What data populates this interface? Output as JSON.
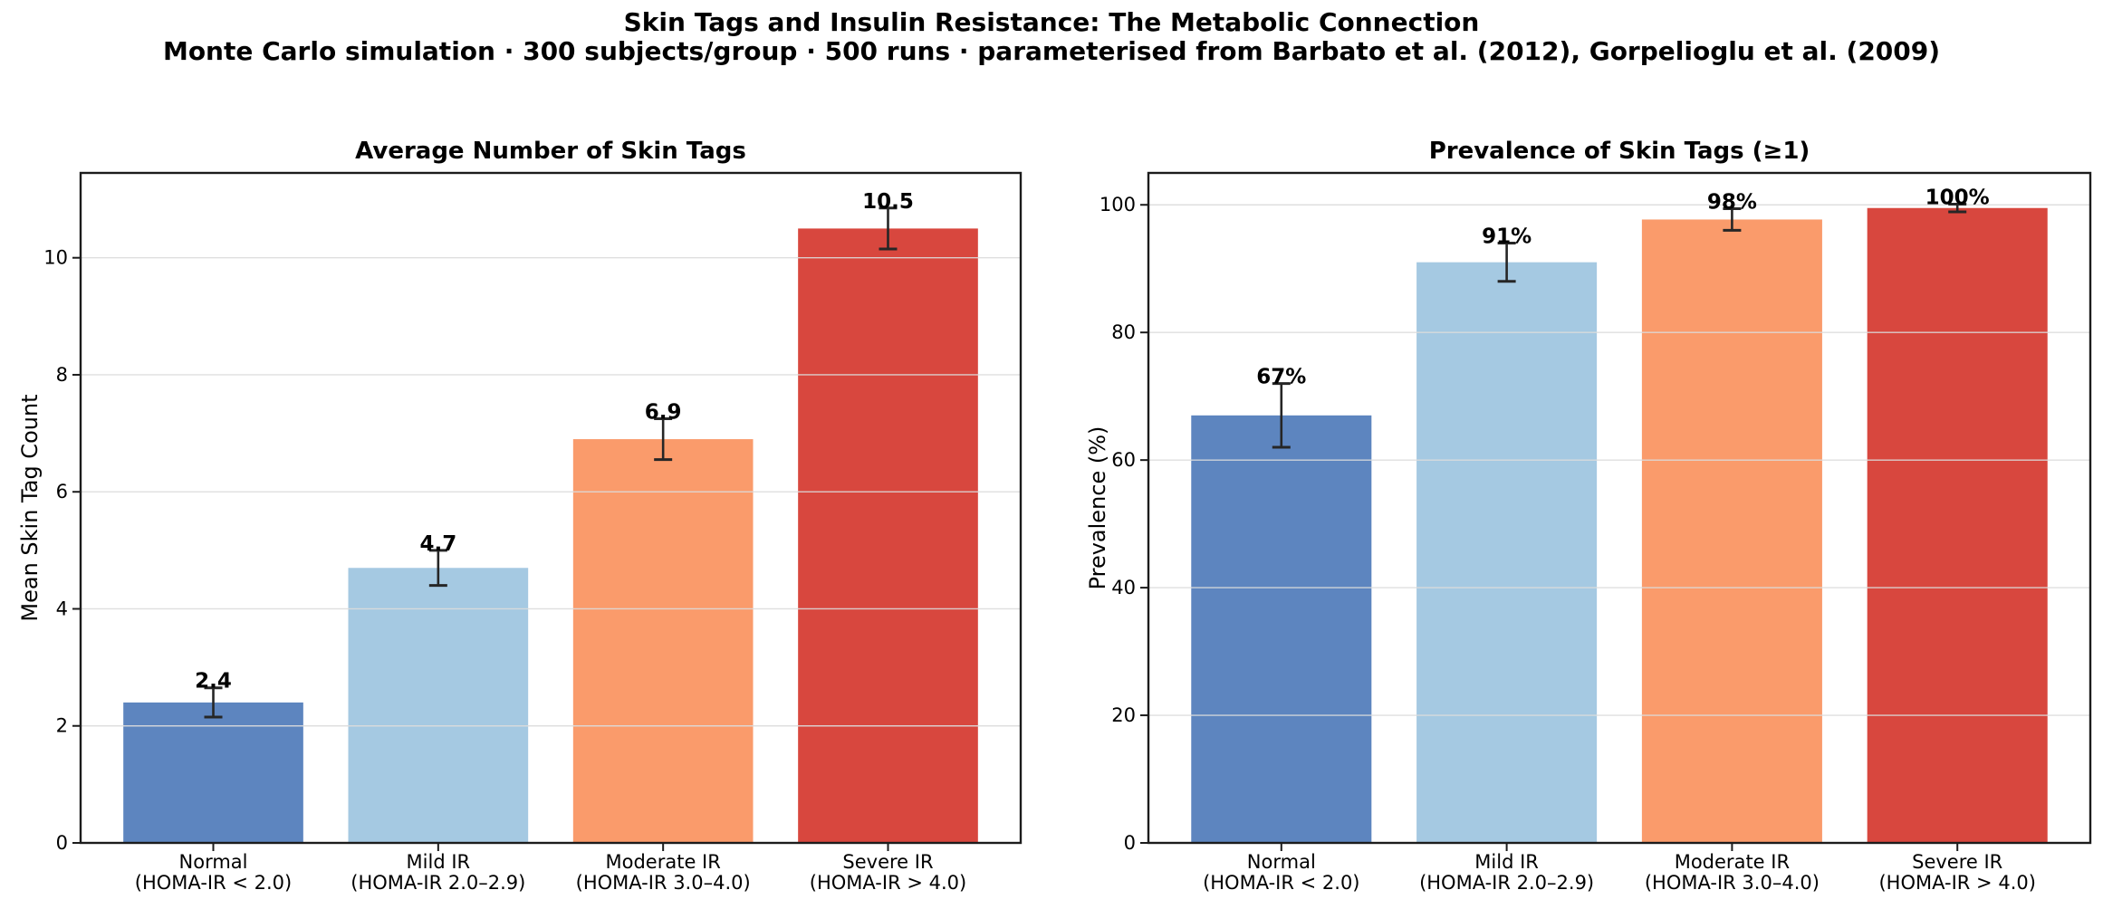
{
  "header": {
    "title": "Skin Tags and Insulin Resistance: The Metabolic Connection",
    "subtitle": "Monte Carlo simulation · 300 subjects/group · 500 runs · parameterised from Barbato et al. (2012), Gorpelioglu et al. (2009)"
  },
  "palette": {
    "bars": [
      "#5d85bf",
      "#a5c9e2",
      "#fa9b6b",
      "#d8473e"
    ],
    "error_bar": "#262626",
    "grid": "#dcdcdc",
    "spine": "#1c1c1c",
    "text": "#000000"
  },
  "chart_data": [
    {
      "type": "bar",
      "title": "Average Number of Skin Tags",
      "xlabel": "",
      "ylabel": "Mean Skin Tag Count",
      "categories": [
        "Normal (HOMA-IR < 2.0)",
        "Mild IR (HOMA-IR 2.0–2.9)",
        "Moderate IR (HOMA-IR 3.0–4.0)",
        "Severe IR (HOMA-IR > 4.0)"
      ],
      "tick_lines": [
        [
          "Normal",
          "(HOMA-IR < 2.0)"
        ],
        [
          "Mild IR",
          "(HOMA-IR 2.0–2.9)"
        ],
        [
          "Moderate IR",
          "(HOMA-IR 3.0–4.0)"
        ],
        [
          "Severe IR",
          "(HOMA-IR > 4.0)"
        ]
      ],
      "values": [
        2.4,
        4.7,
        6.9,
        10.5
      ],
      "errors": [
        0.25,
        0.3,
        0.35,
        0.35
      ],
      "bar_labels": [
        "2.4",
        "4.7",
        "6.9",
        "10.5"
      ],
      "ylim": [
        0,
        11.45
      ],
      "yticks": [
        0,
        2,
        4,
        6,
        8,
        10
      ],
      "grid": true,
      "legend": false
    },
    {
      "type": "bar",
      "title": "Prevalence of Skin Tags (≥1)",
      "xlabel": "",
      "ylabel": "Prevalence (%)",
      "categories": [
        "Normal (HOMA-IR < 2.0)",
        "Mild IR (HOMA-IR 2.0–2.9)",
        "Moderate IR (HOMA-IR 3.0–4.0)",
        "Severe IR (HOMA-IR > 4.0)"
      ],
      "tick_lines": [
        [
          "Normal",
          "(HOMA-IR < 2.0)"
        ],
        [
          "Mild IR",
          "(HOMA-IR 2.0–2.9)"
        ],
        [
          "Moderate IR",
          "(HOMA-IR 3.0–4.0)"
        ],
        [
          "Severe IR",
          "(HOMA-IR > 4.0)"
        ]
      ],
      "values": [
        67,
        91,
        97.7,
        99.5
      ],
      "errors": [
        5,
        3,
        1.7,
        0.6
      ],
      "bar_labels": [
        "67%",
        "91%",
        "98%",
        "100%"
      ],
      "ylim": [
        0,
        105
      ],
      "yticks": [
        0,
        20,
        40,
        60,
        80,
        100
      ],
      "grid": true,
      "legend": false
    }
  ]
}
